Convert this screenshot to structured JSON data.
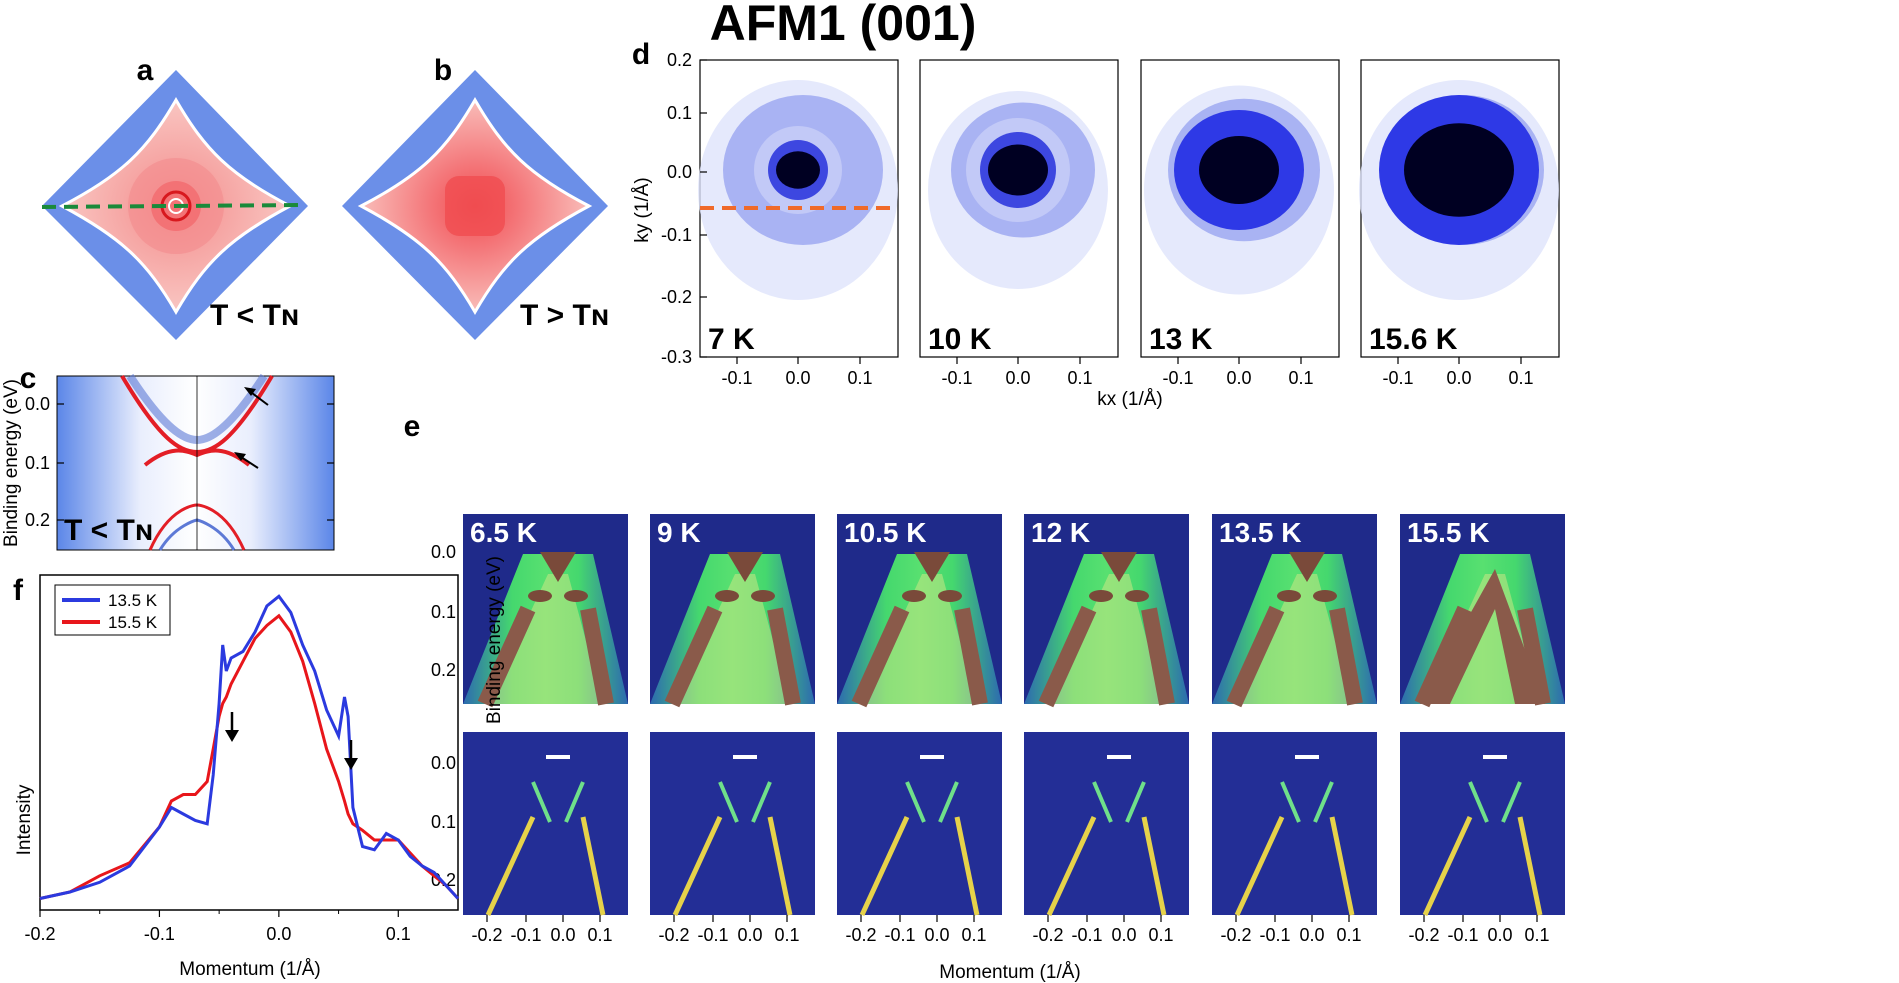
{
  "title": "AFM1 (001)",
  "panel_letters": {
    "a": "a",
    "b": "b",
    "c": "c",
    "d": "d",
    "e": "e",
    "f": "f"
  },
  "panel_a": {
    "label": "T < Tɴ"
  },
  "panel_b": {
    "label": "T > Tɴ"
  },
  "panel_c": {
    "label": "T < Tɴ",
    "ylabel": "Binding energy (eV)",
    "yticks": [
      "0.0",
      "0.1",
      "0.2"
    ]
  },
  "panel_d": {
    "ylabel": "ky (1/Å)",
    "xlabel": "kx (1/Å)",
    "yticks": [
      "0.2",
      "0.1",
      "0.0",
      "-0.1",
      "-0.2",
      "-0.3"
    ],
    "xticks": [
      "-0.1",
      "0.0",
      "0.1"
    ],
    "temperatures": [
      "7 K",
      "10 K",
      "13 K",
      "15.6 K"
    ]
  },
  "panel_e": {
    "ylabel": "Binding energy (eV)",
    "xlabel": "Momentum (1/Å)",
    "yticks": [
      "0.0",
      "0.1",
      "0.2"
    ],
    "xticks": [
      "-0.2",
      "-0.1",
      "0.0",
      "0.1"
    ],
    "temperatures": [
      "6.5 K",
      "9 K",
      "10.5 K",
      "12 K",
      "13.5 K",
      "15.5 K"
    ]
  },
  "panel_f": {
    "ylabel": "Intensity",
    "xlabel": "Momentum (1/Å)",
    "xticks": [
      "-0.2",
      "-0.1",
      "0.0",
      "0.1"
    ]
  },
  "colors": {
    "afm_blue": "#6b8fe8",
    "afm_red": "#f4a8a8",
    "series_13_5": "#2b3adf",
    "series_15_5": "#e8161b",
    "dashed_green": "#1a8a3a",
    "dashed_orange": "#f06a2a"
  },
  "chart_data": [
    {
      "type": "line",
      "panel": "f",
      "xlabel": "Momentum (1/Å)",
      "ylabel": "Intensity",
      "xlim": [
        -0.2,
        0.15
      ],
      "ylim": [
        0,
        1.0
      ],
      "x": [
        -0.2,
        -0.175,
        -0.15,
        -0.125,
        -0.1,
        -0.09,
        -0.08,
        -0.07,
        -0.06,
        -0.055,
        -0.05,
        -0.047,
        -0.044,
        -0.04,
        -0.03,
        -0.02,
        -0.01,
        0.0,
        0.01,
        0.02,
        0.03,
        0.04,
        0.05,
        0.055,
        0.058,
        0.062,
        0.07,
        0.08,
        0.09,
        0.1,
        0.11,
        0.12,
        0.13,
        0.14,
        0.15
      ],
      "series": [
        {
          "name": "13.5 K",
          "values": [
            0.02,
            0.04,
            0.07,
            0.12,
            0.24,
            0.3,
            0.28,
            0.26,
            0.25,
            0.4,
            0.62,
            0.8,
            0.72,
            0.76,
            0.78,
            0.84,
            0.92,
            0.95,
            0.9,
            0.8,
            0.72,
            0.6,
            0.52,
            0.64,
            0.58,
            0.3,
            0.18,
            0.17,
            0.22,
            0.2,
            0.15,
            0.12,
            0.1,
            0.06,
            0.02
          ]
        },
        {
          "name": "15.5 K",
          "values": [
            0.02,
            0.04,
            0.09,
            0.13,
            0.24,
            0.32,
            0.34,
            0.34,
            0.38,
            0.48,
            0.58,
            0.62,
            0.64,
            0.68,
            0.75,
            0.82,
            0.86,
            0.89,
            0.84,
            0.75,
            0.62,
            0.48,
            0.38,
            0.32,
            0.28,
            0.25,
            0.23,
            0.2,
            0.2,
            0.2,
            0.16,
            0.12,
            0.09,
            0.06,
            0.02
          ]
        }
      ],
      "annotations": [
        "down-arrow at -0.047",
        "down-arrow at 0.057"
      ]
    }
  ]
}
